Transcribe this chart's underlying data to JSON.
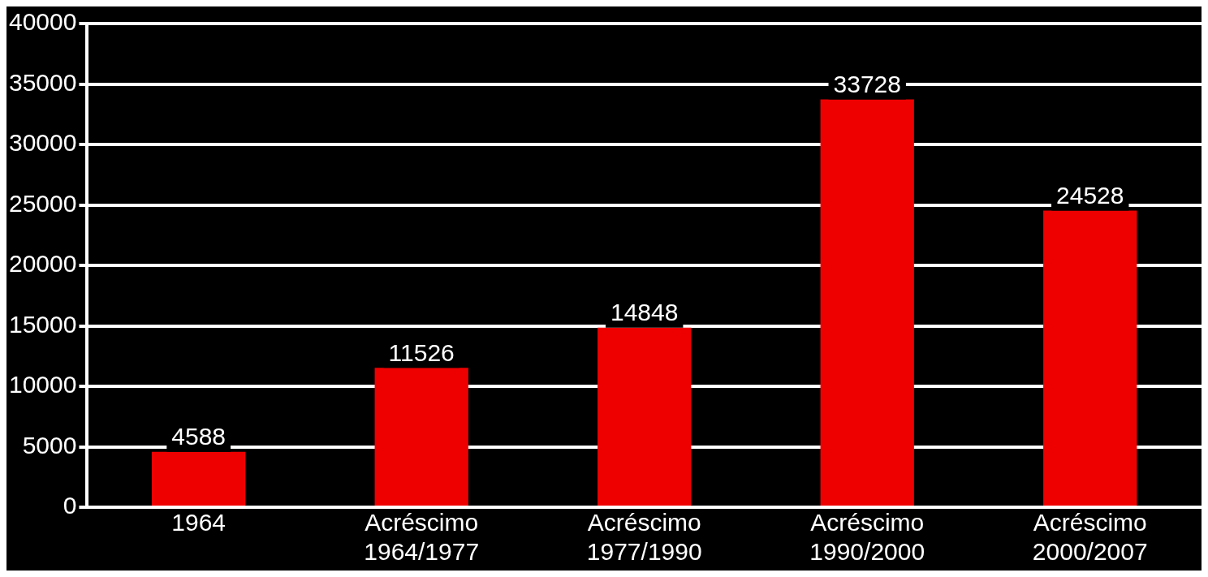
{
  "chart_data": {
    "type": "bar",
    "categories": [
      "1964",
      "Acréscimo 1964/1977",
      "Acréscimo 1977/1990",
      "Acréscimo 1990/2000",
      "Acréscimo 2000/2007"
    ],
    "values": [
      4588,
      11526,
      14848,
      33728,
      24528
    ],
    "color": "#ee0000",
    "ylim": [
      0,
      40000
    ],
    "yticks": [
      0,
      5000,
      10000,
      15000,
      20000,
      25000,
      30000,
      35000,
      40000
    ],
    "grid": "y",
    "legend": false,
    "data_labels": true
  }
}
